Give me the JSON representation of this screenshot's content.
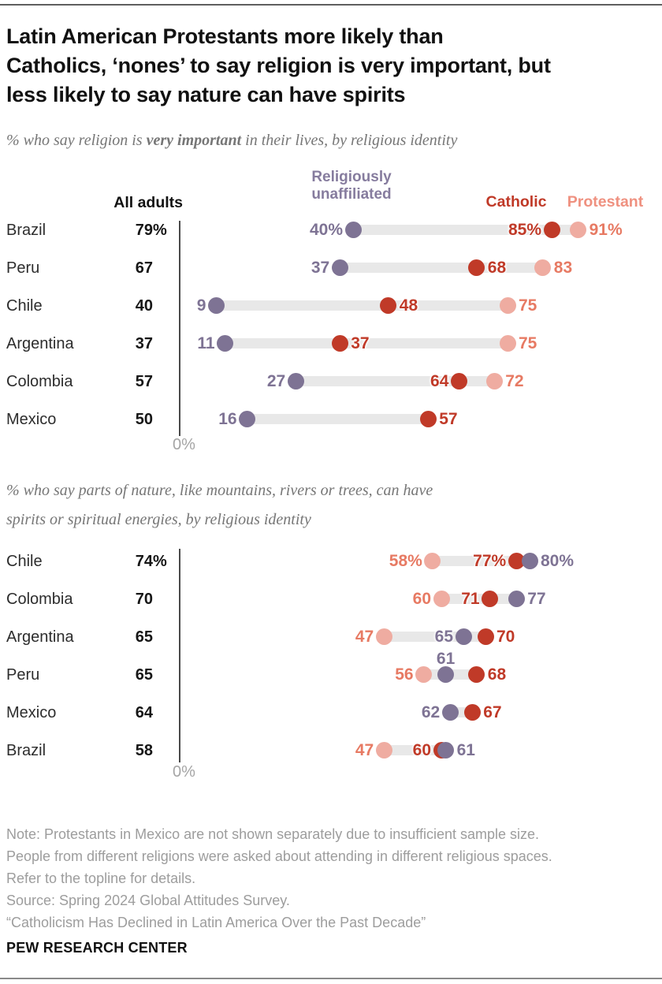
{
  "header": {
    "title_lines": [
      "Latin American Protestants more likely than",
      "Catholics, ‘nones’ to say religion is very important, but",
      "less likely to say nature can have spirits"
    ]
  },
  "subtitle1": {
    "pre": "% who say religion is ",
    "bold": "very important",
    "post": " in their lives, by religious identity"
  },
  "subtitle2_lines": [
    "% who say parts of nature, like mountains, rivers or trees, can have",
    "spirits or spiritual energies, by religious identity"
  ],
  "legend": {
    "all_adults": "All adults",
    "unaffiliated_line1": "Religiously",
    "unaffiliated_line2": "unaffiliated",
    "catholic": "Catholic",
    "protestant": "Protestant"
  },
  "axis_zero_label": "0%",
  "colors": {
    "unaffiliated": "#7e7394",
    "catholic": "#c03a28",
    "protestant_dot": "#efaca1",
    "protestant_label": "#e77a63",
    "legend_unaffiliated": "#867c9e",
    "legend_catholic": "#c03a28",
    "legend_protestant": "#ef9180",
    "bar": "#e8e8e8"
  },
  "chart_data": [
    {
      "type": "scatter",
      "subtype": "dot-plot",
      "title": "% who say religion is very important in their lives, by religious identity",
      "xlim": [
        0,
        100
      ],
      "x_zero_label": "0%",
      "groups": [
        "All adults",
        "Religiously unaffiliated",
        "Catholic",
        "Protestant"
      ],
      "rows": [
        {
          "country": "Brazil",
          "all": "79",
          "all_suffix": "%",
          "points": [
            {
              "g": "unaffiliated",
              "v": 40,
              "label": "40%",
              "side": "left"
            },
            {
              "g": "catholic",
              "v": 85,
              "label": "85%",
              "side": "left"
            },
            {
              "g": "protestant",
              "v": 91,
              "label": "91%",
              "side": "right"
            }
          ]
        },
        {
          "country": "Peru",
          "all": "67",
          "all_suffix": "",
          "points": [
            {
              "g": "unaffiliated",
              "v": 37,
              "label": "37",
              "side": "left"
            },
            {
              "g": "catholic",
              "v": 68,
              "label": "68",
              "side": "right"
            },
            {
              "g": "protestant",
              "v": 83,
              "label": "83",
              "side": "right"
            }
          ]
        },
        {
          "country": "Chile",
          "all": "40",
          "all_suffix": "",
          "points": [
            {
              "g": "unaffiliated",
              "v": 9,
              "label": "9",
              "side": "left"
            },
            {
              "g": "catholic",
              "v": 48,
              "label": "48",
              "side": "right"
            },
            {
              "g": "protestant",
              "v": 75,
              "label": "75",
              "side": "right"
            }
          ]
        },
        {
          "country": "Argentina",
          "all": "37",
          "all_suffix": "",
          "points": [
            {
              "g": "unaffiliated",
              "v": 11,
              "label": "11",
              "side": "left"
            },
            {
              "g": "catholic",
              "v": 37,
              "label": "37",
              "side": "right"
            },
            {
              "g": "protestant",
              "v": 75,
              "label": "75",
              "side": "right"
            }
          ]
        },
        {
          "country": "Colombia",
          "all": "57",
          "all_suffix": "",
          "points": [
            {
              "g": "unaffiliated",
              "v": 27,
              "label": "27",
              "side": "left"
            },
            {
              "g": "catholic",
              "v": 64,
              "label": "64",
              "side": "left"
            },
            {
              "g": "protestant",
              "v": 72,
              "label": "72",
              "side": "right"
            }
          ]
        },
        {
          "country": "Mexico",
          "all": "50",
          "all_suffix": "",
          "points": [
            {
              "g": "unaffiliated",
              "v": 16,
              "label": "16",
              "side": "left"
            },
            {
              "g": "catholic",
              "v": 57,
              "label": "57",
              "side": "right"
            }
          ]
        }
      ]
    },
    {
      "type": "scatter",
      "subtype": "dot-plot",
      "title": "% who say parts of nature, like mountains, rivers or trees, can have spirits or spiritual energies, by religious identity",
      "xlim": [
        0,
        100
      ],
      "x_zero_label": "0%",
      "groups": [
        "All adults",
        "Religiously unaffiliated",
        "Catholic",
        "Protestant"
      ],
      "rows": [
        {
          "country": "Chile",
          "all": "74",
          "all_suffix": "%",
          "points": [
            {
              "g": "protestant",
              "v": 58,
              "label": "58%",
              "side": "left"
            },
            {
              "g": "catholic",
              "v": 77,
              "label": "77%",
              "side": "left"
            },
            {
              "g": "unaffiliated",
              "v": 80,
              "label": "80%",
              "side": "right"
            }
          ]
        },
        {
          "country": "Colombia",
          "all": "70",
          "all_suffix": "",
          "points": [
            {
              "g": "protestant",
              "v": 60,
              "label": "60",
              "side": "left"
            },
            {
              "g": "catholic",
              "v": 71,
              "label": "71",
              "side": "left"
            },
            {
              "g": "unaffiliated",
              "v": 77,
              "label": "77",
              "side": "right"
            }
          ]
        },
        {
          "country": "Argentina",
          "all": "65",
          "all_suffix": "",
          "points": [
            {
              "g": "protestant",
              "v": 47,
              "label": "47",
              "side": "left"
            },
            {
              "g": "unaffiliated",
              "v": 65,
              "label": "65",
              "side": "left"
            },
            {
              "g": "catholic",
              "v": 70,
              "label": "70",
              "side": "right"
            }
          ]
        },
        {
          "country": "Peru",
          "all": "65",
          "all_suffix": "",
          "points": [
            {
              "g": "protestant",
              "v": 56,
              "label": "56",
              "side": "left"
            },
            {
              "g": "unaffiliated",
              "v": 61,
              "label": "61",
              "side": "above"
            },
            {
              "g": "catholic",
              "v": 68,
              "label": "68",
              "side": "right"
            }
          ]
        },
        {
          "country": "Mexico",
          "all": "64",
          "all_suffix": "",
          "points": [
            {
              "g": "unaffiliated",
              "v": 62,
              "label": "62",
              "side": "left"
            },
            {
              "g": "catholic",
              "v": 67,
              "label": "67",
              "side": "right"
            }
          ]
        },
        {
          "country": "Brazil",
          "all": "58",
          "all_suffix": "",
          "points": [
            {
              "g": "protestant",
              "v": 47,
              "label": "47",
              "side": "left"
            },
            {
              "g": "catholic",
              "v": 60,
              "label": "60",
              "side": "left"
            },
            {
              "g": "unaffiliated",
              "v": 61,
              "label": "61",
              "side": "right"
            }
          ]
        }
      ]
    }
  ],
  "notes_lines": [
    "Note: Protestants in Mexico are not shown separately due to insufficient sample size.",
    "People from different religions were asked about attending in different religious spaces.",
    "Refer to the topline for details.",
    "Source: Spring 2024 Global Attitudes Survey.",
    "“Catholicism Has Declined in Latin America Over the Past Decade”"
  ],
  "footer": "PEW RESEARCH CENTER"
}
